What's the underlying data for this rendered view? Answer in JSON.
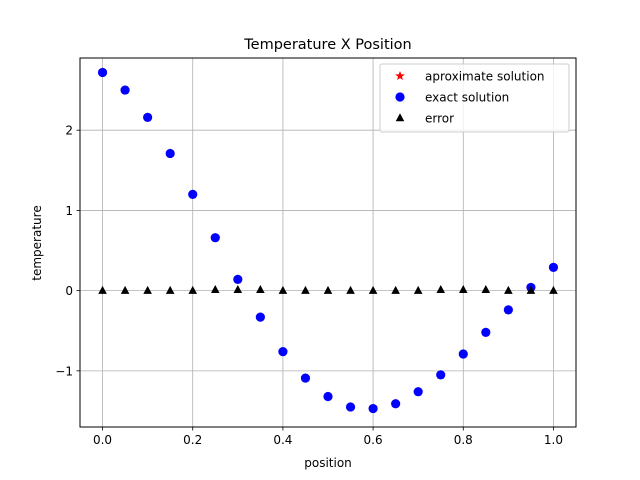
{
  "chart_data": {
    "type": "scatter",
    "title": "Temperature X Position",
    "xlabel": "position",
    "ylabel": "temperature",
    "xlim": [
      -0.05,
      1.05
    ],
    "ylim": [
      -1.7,
      2.9
    ],
    "xticks": [
      0.0,
      0.2,
      0.4,
      0.6,
      0.8,
      1.0
    ],
    "xtick_labels": [
      "0.0",
      "0.2",
      "0.4",
      "0.6",
      "0.8",
      "1.0"
    ],
    "yticks": [
      -1,
      0,
      1,
      2
    ],
    "ytick_labels": [
      "−1",
      "0",
      "1",
      "2"
    ],
    "grid": true,
    "legend_position": "top-right",
    "x": [
      0.0,
      0.05,
      0.1,
      0.15,
      0.2,
      0.25,
      0.3,
      0.35,
      0.4,
      0.45,
      0.5,
      0.55,
      0.6,
      0.65,
      0.7,
      0.75,
      0.8,
      0.85,
      0.9,
      0.95,
      1.0
    ],
    "series": [
      {
        "name": "aproximate solution",
        "marker": "star",
        "color": "#ff0000",
        "values": [
          2.72,
          2.5,
          2.16,
          1.71,
          1.2,
          0.66,
          0.14,
          -0.33,
          -0.76,
          -1.09,
          -1.32,
          -1.45,
          -1.47,
          -1.41,
          -1.26,
          -1.05,
          -0.79,
          -0.52,
          -0.24,
          0.04,
          0.29
        ]
      },
      {
        "name": "exact solution",
        "marker": "circle",
        "color": "#0000ff",
        "values": [
          2.72,
          2.5,
          2.16,
          1.71,
          1.2,
          0.66,
          0.14,
          -0.33,
          -0.76,
          -1.09,
          -1.32,
          -1.45,
          -1.47,
          -1.41,
          -1.26,
          -1.05,
          -0.79,
          -0.52,
          -0.24,
          0.04,
          0.29
        ]
      },
      {
        "name": "error",
        "marker": "triangle",
        "color": "#000000",
        "values": [
          0.0,
          0.0,
          0.0,
          0.0,
          0.0,
          0.01,
          0.01,
          0.01,
          0.0,
          0.0,
          0.0,
          0.0,
          0.0,
          0.0,
          0.0,
          0.01,
          0.01,
          0.01,
          0.0,
          0.0,
          0.0
        ]
      }
    ]
  }
}
